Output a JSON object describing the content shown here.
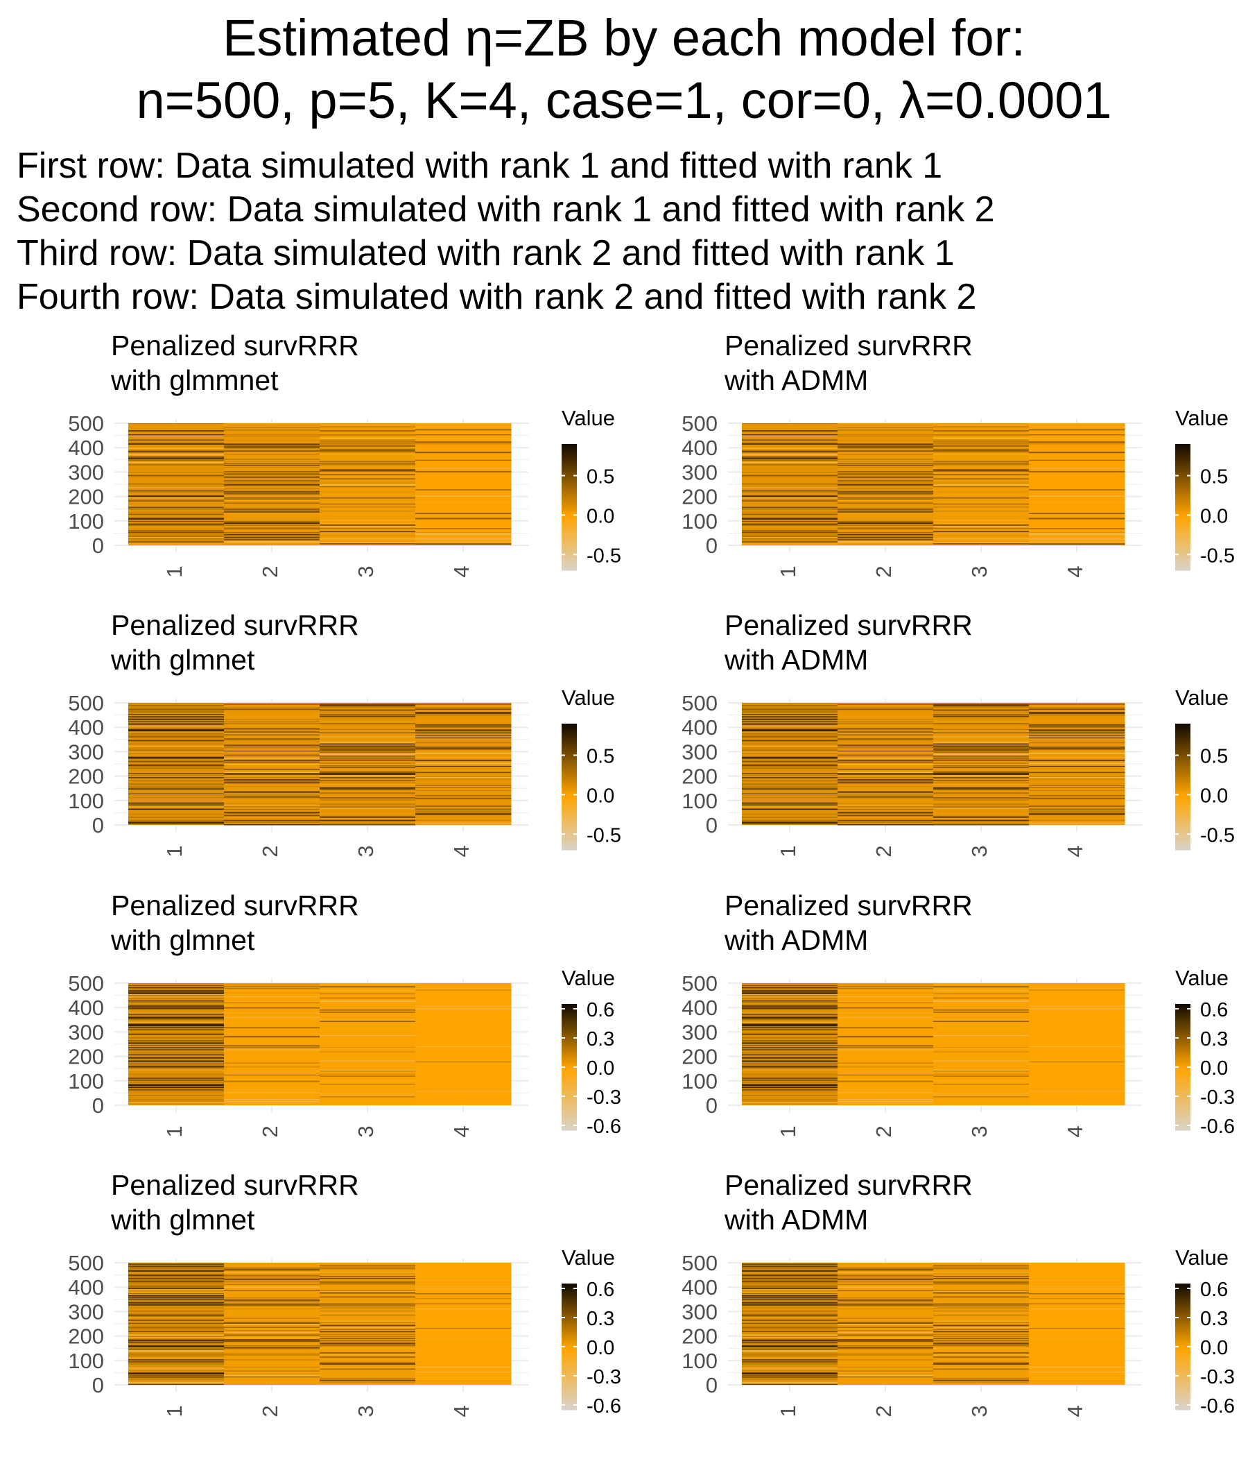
{
  "title": {
    "line1": "Estimated η=ZB by each model for:",
    "line2": "n=500, p=5, K=4, case=1, cor=0, λ=0.0001"
  },
  "subtitle_lines": [
    "First row: Data simulated with rank 1 and fitted with rank 1",
    "Second row: Data simulated with rank 1 and fitted with rank 2",
    "Third row: Data simulated with rank 2 and fitted with rank 1",
    "Fourth row: Data simulated with rank 2 and fitted with rank 2"
  ],
  "colors": {
    "low": "#d9d4cc",
    "mid": "#ffa500",
    "high": "#140c00",
    "grid": "#ebebeb",
    "axis_text": "#4d4d4d"
  },
  "chart_data": [
    {
      "type": "heatmap",
      "row": 1,
      "col": 1,
      "title": "Penalized survRRR\nwith glmmnet",
      "categories": [
        "1",
        "2",
        "3",
        "4"
      ],
      "ylim": [
        0,
        500
      ],
      "yticks": [
        "0",
        "100",
        "200",
        "300",
        "400",
        "500"
      ],
      "legend_title": "Value",
      "legend_ticks": [
        "0.5",
        "0.0",
        "-0.5"
      ],
      "legend_range": [
        -0.7,
        0.9
      ],
      "column_intensity": [
        0.62,
        0.45,
        0.32,
        0.1
      ]
    },
    {
      "type": "heatmap",
      "row": 1,
      "col": 2,
      "title": "Penalized survRRR\nwith ADMM",
      "categories": [
        "1",
        "2",
        "3",
        "4"
      ],
      "ylim": [
        0,
        500
      ],
      "yticks": [
        "0",
        "100",
        "200",
        "300",
        "400",
        "500"
      ],
      "legend_title": "Value",
      "legend_ticks": [
        "0.5",
        "0.0",
        "-0.5"
      ],
      "legend_range": [
        -0.7,
        0.9
      ],
      "column_intensity": [
        0.62,
        0.45,
        0.32,
        0.1
      ]
    },
    {
      "type": "heatmap",
      "row": 2,
      "col": 1,
      "title": "Penalized survRRR\nwith glmnet",
      "categories": [
        "1",
        "2",
        "3",
        "4"
      ],
      "ylim": [
        0,
        500
      ],
      "yticks": [
        "0",
        "100",
        "200",
        "300",
        "400",
        "500"
      ],
      "legend_title": "Value",
      "legend_ticks": [
        "0.5",
        "0.0",
        "-0.5"
      ],
      "legend_range": [
        -0.7,
        0.9
      ],
      "column_intensity": [
        0.65,
        0.5,
        0.5,
        0.48
      ]
    },
    {
      "type": "heatmap",
      "row": 2,
      "col": 2,
      "title": "Penalized survRRR\nwith ADMM",
      "categories": [
        "1",
        "2",
        "3",
        "4"
      ],
      "ylim": [
        0,
        500
      ],
      "yticks": [
        "0",
        "100",
        "200",
        "300",
        "400",
        "500"
      ],
      "legend_title": "Value",
      "legend_ticks": [
        "0.5",
        "0.0",
        "-0.5"
      ],
      "legend_range": [
        -0.7,
        0.9
      ],
      "column_intensity": [
        0.65,
        0.5,
        0.5,
        0.48
      ]
    },
    {
      "type": "heatmap",
      "row": 3,
      "col": 1,
      "title": "Penalized survRRR\nwith glmnet",
      "categories": [
        "1",
        "2",
        "3",
        "4"
      ],
      "ylim": [
        0,
        500
      ],
      "yticks": [
        "0",
        "100",
        "200",
        "300",
        "400",
        "500"
      ],
      "legend_title": "Value",
      "legend_ticks": [
        "0.6",
        "0.3",
        "0.0",
        "-0.3",
        "-0.6"
      ],
      "legend_range": [
        -0.65,
        0.65
      ],
      "column_intensity": [
        0.7,
        0.12,
        0.12,
        0.03
      ]
    },
    {
      "type": "heatmap",
      "row": 3,
      "col": 2,
      "title": "Penalized survRRR\nwith ADMM",
      "categories": [
        "1",
        "2",
        "3",
        "4"
      ],
      "ylim": [
        0,
        500
      ],
      "yticks": [
        "0",
        "100",
        "200",
        "300",
        "400",
        "500"
      ],
      "legend_title": "Value",
      "legend_ticks": [
        "0.6",
        "0.3",
        "0.0",
        "-0.3",
        "-0.6"
      ],
      "legend_range": [
        -0.65,
        0.65
      ],
      "column_intensity": [
        0.7,
        0.12,
        0.12,
        0.03
      ]
    },
    {
      "type": "heatmap",
      "row": 4,
      "col": 1,
      "title": "Penalized survRRR\nwith glmnet",
      "categories": [
        "1",
        "2",
        "3",
        "4"
      ],
      "ylim": [
        0,
        500
      ],
      "yticks": [
        "0",
        "100",
        "200",
        "300",
        "400",
        "500"
      ],
      "legend_title": "Value",
      "legend_ticks": [
        "0.6",
        "0.3",
        "0.0",
        "-0.3",
        "-0.6"
      ],
      "legend_range": [
        -0.65,
        0.65
      ],
      "column_intensity": [
        0.75,
        0.3,
        0.3,
        0.03
      ]
    },
    {
      "type": "heatmap",
      "row": 4,
      "col": 2,
      "title": "Penalized survRRR\nwith ADMM",
      "categories": [
        "1",
        "2",
        "3",
        "4"
      ],
      "ylim": [
        0,
        500
      ],
      "yticks": [
        "0",
        "100",
        "200",
        "300",
        "400",
        "500"
      ],
      "legend_title": "Value",
      "legend_ticks": [
        "0.6",
        "0.3",
        "0.0",
        "-0.3",
        "-0.6"
      ],
      "legend_range": [
        -0.65,
        0.65
      ],
      "column_intensity": [
        0.75,
        0.3,
        0.3,
        0.03
      ]
    }
  ]
}
